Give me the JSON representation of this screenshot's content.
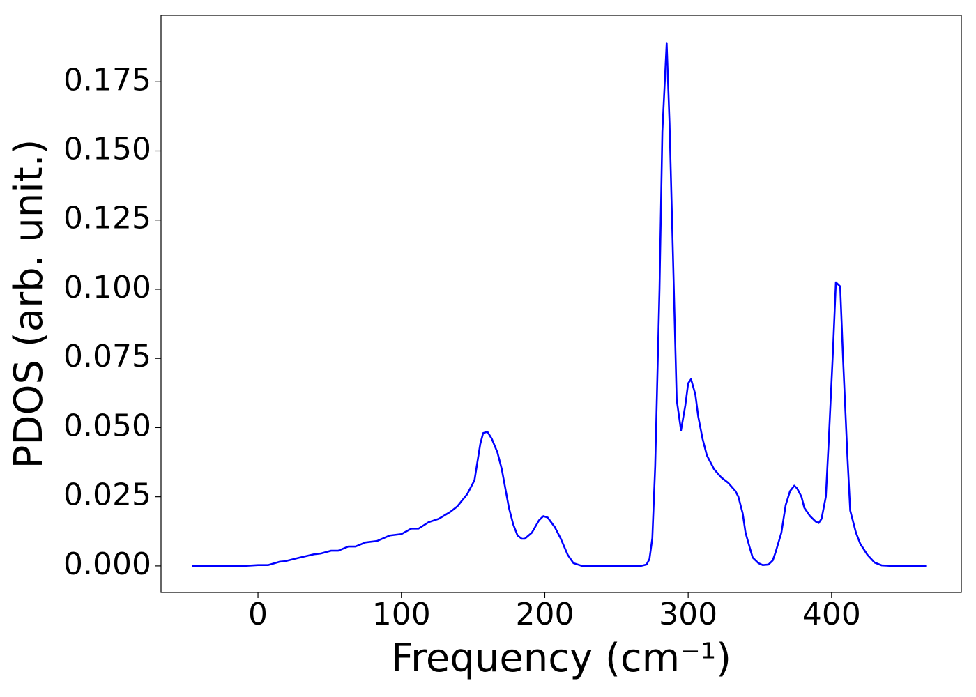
{
  "chart_data": {
    "type": "line",
    "xlabel": "Frequency (cm⁻¹)",
    "ylabel": "PDOS (arb. unit.)",
    "xlim": [
      -67.6,
      490.5
    ],
    "ylim": [
      -0.0096,
      0.199
    ],
    "xticks": [
      0,
      100,
      200,
      300,
      400
    ],
    "yticks": [
      {
        "value": 0,
        "label": "0.000"
      },
      {
        "value": 0.025,
        "label": "0.025"
      },
      {
        "value": 0.05,
        "label": "0.050"
      },
      {
        "value": 0.075,
        "label": "0.075"
      },
      {
        "value": 0.1,
        "label": "0.100"
      },
      {
        "value": 0.125,
        "label": "0.125"
      },
      {
        "value": 0.15,
        "label": "0.150"
      },
      {
        "value": 0.175,
        "label": "0.175"
      }
    ],
    "grid": false,
    "series": [
      {
        "color": "#0000ff",
        "x": [
          -46,
          -10,
          0,
          7,
          15,
          19,
          29,
          39,
          44,
          51,
          56,
          63,
          68,
          75,
          83,
          92,
          100,
          107,
          112,
          119,
          126,
          134,
          139,
          146,
          151,
          155,
          157,
          160,
          163,
          167,
          170,
          175,
          178,
          181,
          184,
          186,
          191,
          196,
          199,
          202,
          207,
          211,
          216,
          220,
          226,
          267,
          271,
          273,
          275,
          277,
          280,
          282,
          285,
          287,
          290,
          292,
          295,
          298,
          300,
          302,
          305,
          307,
          310,
          313,
          318,
          323,
          328,
          333,
          335,
          338,
          340,
          343,
          345,
          349,
          352,
          356,
          359,
          361,
          365,
          368,
          371,
          374,
          376,
          379,
          381,
          385,
          389,
          391,
          393,
          396,
          398,
          401,
          403,
          406,
          408,
          411,
          413,
          417,
          420,
          425,
          430,
          435,
          442,
          466
        ],
        "values": [
          0,
          0,
          0.0003,
          0.0003,
          0.0015,
          0.0017,
          0.003,
          0.0042,
          0.0045,
          0.0055,
          0.0055,
          0.007,
          0.007,
          0.0085,
          0.009,
          0.011,
          0.0115,
          0.0135,
          0.0135,
          0.0158,
          0.017,
          0.0195,
          0.0215,
          0.026,
          0.031,
          0.044,
          0.048,
          0.0485,
          0.046,
          0.041,
          0.035,
          0.021,
          0.015,
          0.011,
          0.0098,
          0.0098,
          0.012,
          0.0165,
          0.018,
          0.0175,
          0.014,
          0.01,
          0.004,
          0.001,
          0,
          0,
          0.0005,
          0.0025,
          0.01,
          0.036,
          0.1,
          0.157,
          0.189,
          0.16,
          0.1,
          0.06,
          0.049,
          0.058,
          0.066,
          0.0675,
          0.062,
          0.054,
          0.046,
          0.04,
          0.035,
          0.032,
          0.03,
          0.027,
          0.025,
          0.019,
          0.012,
          0.0065,
          0.003,
          0.001,
          0.0003,
          0.0005,
          0.002,
          0.005,
          0.012,
          0.022,
          0.027,
          0.029,
          0.028,
          0.025,
          0.021,
          0.018,
          0.016,
          0.0155,
          0.017,
          0.025,
          0.045,
          0.078,
          0.1025,
          0.101,
          0.075,
          0.04,
          0.02,
          0.012,
          0.008,
          0.004,
          0.0012,
          0.0002,
          0,
          0
        ]
      }
    ]
  }
}
